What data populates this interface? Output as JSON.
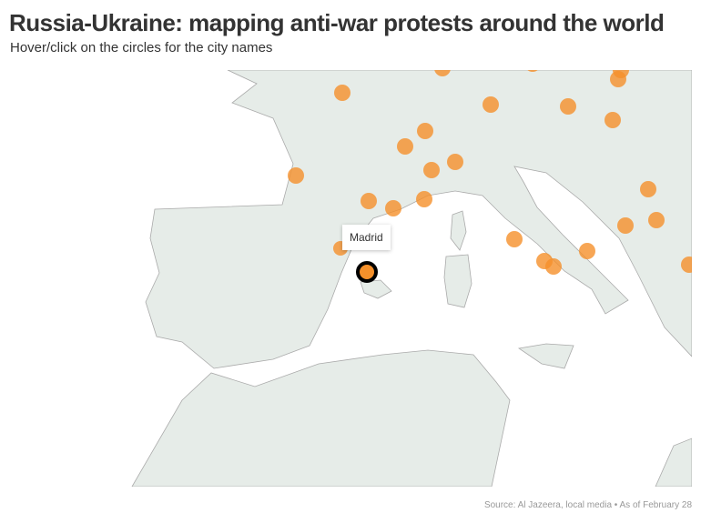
{
  "header": {
    "title": "Russia-Ukraine: mapping anti-war protests around the world",
    "subtitle": "Hover/click on the circles for the city names"
  },
  "tooltip": {
    "label": "Madrid"
  },
  "footer": {
    "source": "Source: Al Jazeera, local media • As of February 28"
  }
}
